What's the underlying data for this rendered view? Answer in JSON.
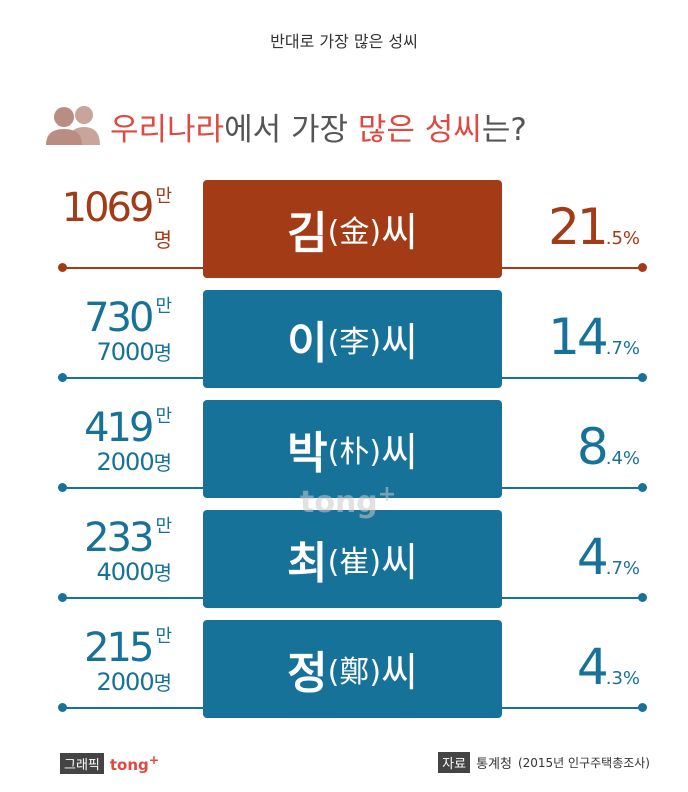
{
  "top_title": "반대로 가장 많은 성씨",
  "heading": {
    "part1": "우리나라",
    "part2": "에서 가장 ",
    "part3": "많은 성씨",
    "part4": "는?"
  },
  "rows": [
    {
      "color": "#a33b17",
      "top": "1069",
      "man": "만",
      "myeong": "명",
      "surname": "김",
      "hanja": "(金)",
      "suffix": "씨",
      "pct_big": "21",
      "pct_small": ".5%"
    },
    {
      "color": "#17729a",
      "top": "730",
      "man": "만",
      "bottom": "7000",
      "myeong": "명",
      "surname": "이",
      "hanja": "(李)",
      "suffix": "씨",
      "pct_big": "14",
      "pct_small": ".7%"
    },
    {
      "color": "#17729a",
      "top": "419",
      "man": "만",
      "bottom": "2000",
      "myeong": "명",
      "surname": "박",
      "hanja": "(朴)",
      "suffix": "씨",
      "pct_big": "8",
      "pct_small": ".4%"
    },
    {
      "color": "#17729a",
      "top": "233",
      "man": "만",
      "bottom": "4000",
      "myeong": "명",
      "surname": "최",
      "hanja": "(崔)",
      "suffix": "씨",
      "pct_big": "4",
      "pct_small": ".7%"
    },
    {
      "color": "#17729a",
      "top": "215",
      "man": "만",
      "bottom": "2000",
      "myeong": "명",
      "surname": "정",
      "hanja": "(鄭)",
      "suffix": "씨",
      "pct_big": "4",
      "pct_small": ".3%"
    }
  ],
  "watermark": {
    "text": "tong",
    "plus": "+"
  },
  "footer": {
    "graphic_label": "그래픽",
    "brand": "tong",
    "brand_plus": "+",
    "source_label": "자료",
    "source": "통계청",
    "source_note": "(2015년 인구주택총조사)"
  }
}
